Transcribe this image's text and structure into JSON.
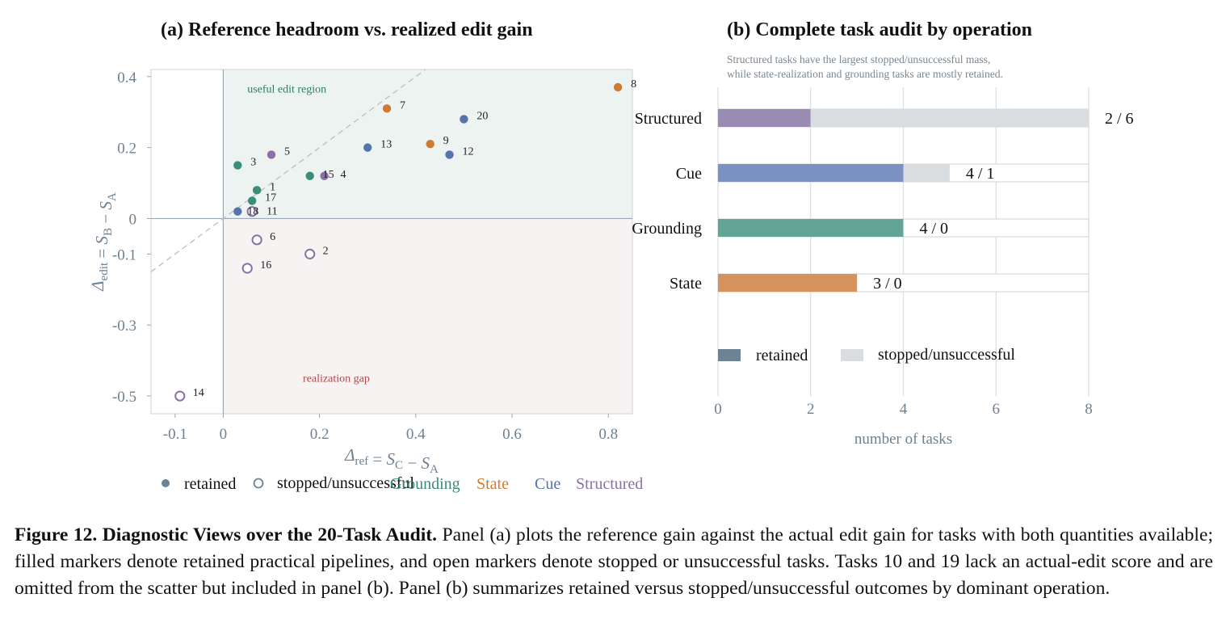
{
  "figure": {
    "panel_a_title": "(a) Reference headroom vs. realized edit gain",
    "panel_b_title": "(b) Complete task audit by operation",
    "panel_b_subtitle_line1": "Structured tasks have the largest stopped/unsuccessful mass,",
    "panel_b_subtitle_line2": "while state-realization and grounding tasks are mostly retained."
  },
  "caption": {
    "label": "Figure 12. ",
    "bold": "Diagnostic Views over the 20-Task Audit.",
    "text": " Panel (a) plots the reference gain against the actual edit gain for tasks with both quantities available; filled markers denote retained practical pipelines, and open markers denote stopped or unsuccessful tasks. Tasks 10 and 19 lack an actual-edit score and are omitted from the scatter but included in panel (b). Panel (b) summarizes retained versus stopped/unsuccessful outcomes by dominant operation."
  },
  "colors": {
    "Grounding": "#3a8d78",
    "State": "#cf7a34",
    "Cue": "#5673ad",
    "Structured": "#8771a6",
    "axis_text": "#6f8090",
    "useful_region_fill": "#edf3f1",
    "gap_region_fill": "#f8f3f3",
    "useful_label": "#2e7d60",
    "gap_label": "#b5474a",
    "bar_Grounding": "#63a595",
    "bar_State": "#d5925c",
    "bar_Cue": "#7a91c1",
    "bar_Structured": "#9a8bb3",
    "bar_stopped": "#dadde0",
    "legend_retained": "#6b8393"
  },
  "chart_data": [
    {
      "type": "scatter",
      "title": "(a) Reference headroom vs. realized edit gain",
      "xlabel": "Δ_ref = S_C − S_A",
      "ylabel": "Δ_edit = S_B − S_A",
      "xlim": [
        -0.15,
        0.85
      ],
      "ylim": [
        -0.55,
        0.42
      ],
      "x_ticks": [
        -0.1,
        0,
        0.2,
        0.4,
        0.6,
        0.8
      ],
      "x_tick_labels": [
        "-0.1",
        "0",
        "0.2",
        "0.4",
        "0.6",
        "0.8"
      ],
      "y_ticks": [
        0.4,
        0.2,
        0,
        -0.1,
        -0.3,
        -0.5
      ],
      "y_tick_labels": [
        "0.4",
        "0.2",
        "0",
        "-0.1",
        "-0.3",
        "-0.5"
      ],
      "grid": false,
      "reference_line": "y = x (dashed)",
      "region_labels": [
        "useful edit region",
        "realization gap"
      ],
      "legend": {
        "marker_items": [
          "retained",
          "stopped/unsuccessful"
        ],
        "category_items": [
          "Grounding",
          "State",
          "Cue",
          "Structured"
        ],
        "placement": "bottom-left"
      },
      "points": [
        {
          "id": "1",
          "x": 0.07,
          "y": 0.08,
          "category": "Grounding",
          "status": "retained"
        },
        {
          "id": "2",
          "x": 0.18,
          "y": -0.1,
          "category": "Structured",
          "status": "stopped/unsuccessful"
        },
        {
          "id": "3",
          "x": 0.03,
          "y": 0.15,
          "category": "Grounding",
          "status": "retained"
        },
        {
          "id": "4",
          "x": 0.21,
          "y": 0.12,
          "category": "Structured",
          "status": "retained"
        },
        {
          "id": "5",
          "x": 0.1,
          "y": 0.18,
          "category": "Structured",
          "status": "retained"
        },
        {
          "id": "6",
          "x": 0.07,
          "y": -0.06,
          "category": "Structured",
          "status": "stopped/unsuccessful"
        },
        {
          "id": "7",
          "x": 0.34,
          "y": 0.31,
          "category": "State",
          "status": "retained"
        },
        {
          "id": "8",
          "x": 0.82,
          "y": 0.37,
          "category": "State",
          "status": "retained"
        },
        {
          "id": "9",
          "x": 0.43,
          "y": 0.21,
          "category": "State",
          "status": "retained"
        },
        {
          "id": "11",
          "x": 0.06,
          "y": 0.02,
          "category": "Structured",
          "status": "stopped/unsuccessful"
        },
        {
          "id": "12",
          "x": 0.47,
          "y": 0.18,
          "category": "Cue",
          "status": "retained"
        },
        {
          "id": "13",
          "x": 0.3,
          "y": 0.2,
          "category": "Cue",
          "status": "retained"
        },
        {
          "id": "14",
          "x": -0.09,
          "y": -0.5,
          "category": "Structured",
          "status": "stopped/unsuccessful"
        },
        {
          "id": "15",
          "x": 0.18,
          "y": 0.12,
          "category": "Grounding",
          "status": "retained"
        },
        {
          "id": "16",
          "x": 0.05,
          "y": -0.14,
          "category": "Structured",
          "status": "stopped/unsuccessful"
        },
        {
          "id": "17",
          "x": 0.06,
          "y": 0.05,
          "category": "Grounding",
          "status": "retained"
        },
        {
          "id": "18",
          "x": 0.03,
          "y": 0.02,
          "category": "Cue",
          "status": "retained"
        },
        {
          "id": "20",
          "x": 0.5,
          "y": 0.28,
          "category": "Cue",
          "status": "retained"
        }
      ]
    },
    {
      "type": "bar",
      "orientation": "horizontal",
      "stacked": true,
      "title": "(b) Complete task audit by operation",
      "xlabel": "number of tasks",
      "xlim": [
        0,
        8
      ],
      "x_ticks": [
        0,
        2,
        4,
        6,
        8
      ],
      "grid": true,
      "categories": [
        "Structured",
        "Cue",
        "Grounding",
        "State"
      ],
      "series": [
        {
          "name": "retained",
          "values": [
            2,
            4,
            4,
            3
          ]
        },
        {
          "name": "stopped/unsuccessful",
          "values": [
            6,
            1,
            0,
            0
          ]
        }
      ],
      "data_labels": [
        "2 / 6",
        "4 / 1",
        "4 / 0",
        "3 / 0"
      ],
      "legend": {
        "items": [
          "retained",
          "stopped/unsuccessful"
        ],
        "placement": "bottom"
      }
    }
  ]
}
